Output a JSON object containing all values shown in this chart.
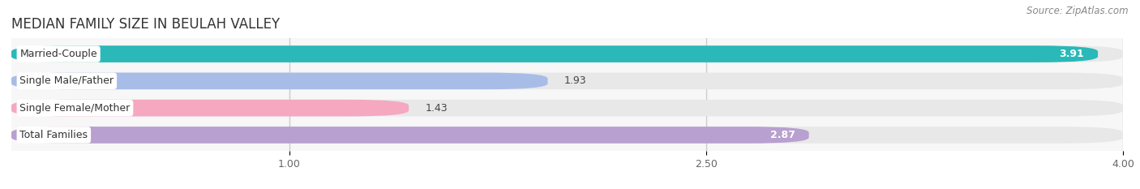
{
  "title": "MEDIAN FAMILY SIZE IN BEULAH VALLEY",
  "source": "Source: ZipAtlas.com",
  "categories": [
    "Married-Couple",
    "Single Male/Father",
    "Single Female/Mother",
    "Total Families"
  ],
  "values": [
    3.91,
    1.93,
    1.43,
    2.87
  ],
  "bar_colors": [
    "#2ab8b8",
    "#a8bce8",
    "#f5a8c0",
    "#b8a0d0"
  ],
  "value_inside": [
    true,
    false,
    false,
    true
  ],
  "xmin": 0.0,
  "xmax": 4.0,
  "xdata_min": 0.0,
  "xdata_max": 4.0,
  "xticks": [
    1.0,
    2.5,
    4.0
  ],
  "background_color": "#ffffff",
  "plot_bg_color": "#f7f7f7",
  "bar_bg_color": "#e8e8e8",
  "bar_height": 0.62,
  "bar_gap": 0.38,
  "title_fontsize": 12,
  "source_fontsize": 8.5,
  "label_fontsize": 9,
  "value_fontsize": 9,
  "grid_color": "#cccccc"
}
